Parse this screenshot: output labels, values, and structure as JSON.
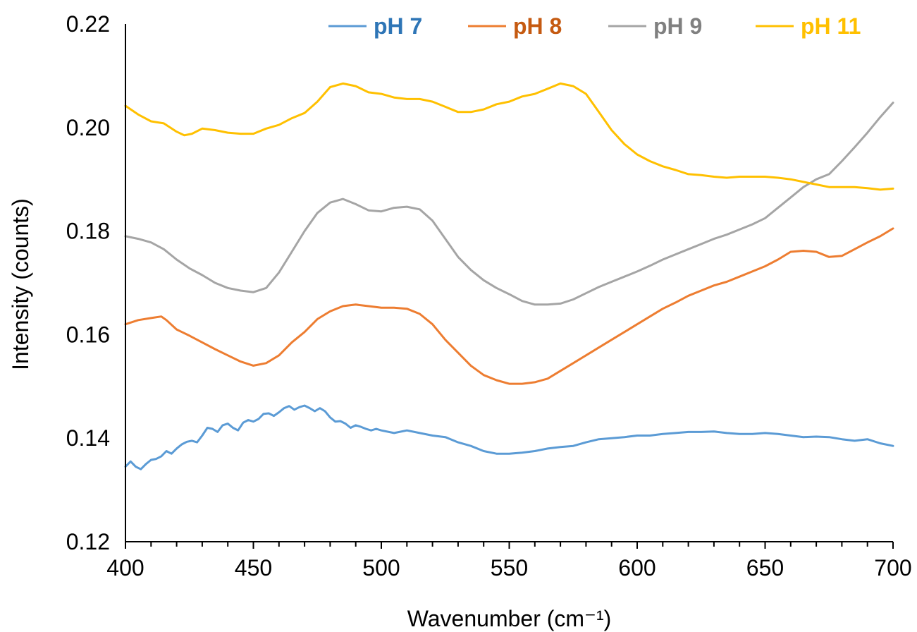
{
  "chart_data": {
    "type": "line",
    "title": "",
    "xlabel": "Wavenumber (cm⁻¹)",
    "ylabel": "Intensity (counts)",
    "xlim": [
      400,
      700
    ],
    "ylim": [
      0.12,
      0.22
    ],
    "x_ticks": [
      400,
      450,
      500,
      550,
      600,
      650,
      700
    ],
    "x_tick_labels": [
      "400",
      "450",
      "500",
      "550",
      "600",
      "650",
      "700"
    ],
    "y_ticks": [
      0.12,
      0.14,
      0.16,
      0.18,
      0.2,
      0.22
    ],
    "y_tick_labels": [
      "0.12",
      "0.14",
      "0.16",
      "0.18",
      "0.20",
      "0.22"
    ],
    "x_minor_tick_step": 10,
    "grid": false,
    "legend_position": "top",
    "series": [
      {
        "name": "pH 7",
        "color": "#5B9BD5",
        "label_color": "#2E75B6",
        "points": [
          [
            400,
            0.1345
          ],
          [
            402,
            0.1355
          ],
          [
            404,
            0.1345
          ],
          [
            406,
            0.134
          ],
          [
            408,
            0.135
          ],
          [
            410,
            0.1358
          ],
          [
            412,
            0.136
          ],
          [
            414,
            0.1365
          ],
          [
            416,
            0.1375
          ],
          [
            418,
            0.137
          ],
          [
            420,
            0.138
          ],
          [
            422,
            0.1388
          ],
          [
            424,
            0.1393
          ],
          [
            426,
            0.1395
          ],
          [
            428,
            0.1392
          ],
          [
            430,
            0.1405
          ],
          [
            432,
            0.142
          ],
          [
            434,
            0.1418
          ],
          [
            436,
            0.1412
          ],
          [
            438,
            0.1425
          ],
          [
            440,
            0.1428
          ],
          [
            442,
            0.142
          ],
          [
            444,
            0.1415
          ],
          [
            446,
            0.143
          ],
          [
            448,
            0.1435
          ],
          [
            450,
            0.1432
          ],
          [
            452,
            0.1437
          ],
          [
            454,
            0.1447
          ],
          [
            456,
            0.1448
          ],
          [
            458,
            0.1443
          ],
          [
            460,
            0.145
          ],
          [
            462,
            0.1458
          ],
          [
            464,
            0.1462
          ],
          [
            466,
            0.1455
          ],
          [
            468,
            0.146
          ],
          [
            470,
            0.1463
          ],
          [
            472,
            0.1458
          ],
          [
            474,
            0.1452
          ],
          [
            476,
            0.1458
          ],
          [
            478,
            0.1452
          ],
          [
            480,
            0.144
          ],
          [
            482,
            0.1432
          ],
          [
            484,
            0.1433
          ],
          [
            486,
            0.1428
          ],
          [
            488,
            0.142
          ],
          [
            490,
            0.1425
          ],
          [
            492,
            0.1422
          ],
          [
            494,
            0.1418
          ],
          [
            496,
            0.1415
          ],
          [
            498,
            0.1418
          ],
          [
            500,
            0.1415
          ],
          [
            505,
            0.141
          ],
          [
            510,
            0.1415
          ],
          [
            515,
            0.141
          ],
          [
            520,
            0.1405
          ],
          [
            525,
            0.1402
          ],
          [
            530,
            0.1392
          ],
          [
            535,
            0.1385
          ],
          [
            540,
            0.1375
          ],
          [
            545,
            0.137
          ],
          [
            550,
            0.137
          ],
          [
            555,
            0.1372
          ],
          [
            560,
            0.1375
          ],
          [
            565,
            0.138
          ],
          [
            570,
            0.1383
          ],
          [
            575,
            0.1385
          ],
          [
            580,
            0.1392
          ],
          [
            585,
            0.1398
          ],
          [
            590,
            0.14
          ],
          [
            595,
            0.1402
          ],
          [
            600,
            0.1405
          ],
          [
            605,
            0.1405
          ],
          [
            610,
            0.1408
          ],
          [
            615,
            0.141
          ],
          [
            620,
            0.1412
          ],
          [
            625,
            0.1412
          ],
          [
            630,
            0.1413
          ],
          [
            635,
            0.141
          ],
          [
            640,
            0.1408
          ],
          [
            645,
            0.1408
          ],
          [
            650,
            0.141
          ],
          [
            655,
            0.1408
          ],
          [
            660,
            0.1405
          ],
          [
            665,
            0.1402
          ],
          [
            670,
            0.1403
          ],
          [
            675,
            0.1402
          ],
          [
            680,
            0.1398
          ],
          [
            685,
            0.1395
          ],
          [
            690,
            0.1398
          ],
          [
            695,
            0.139
          ],
          [
            700,
            0.1385
          ]
        ]
      },
      {
        "name": "pH 8",
        "color": "#ED7D31",
        "label_color": "#C55A11",
        "points": [
          [
            400,
            0.162
          ],
          [
            405,
            0.1628
          ],
          [
            410,
            0.1632
          ],
          [
            414,
            0.1635
          ],
          [
            416,
            0.1628
          ],
          [
            420,
            0.161
          ],
          [
            425,
            0.1598
          ],
          [
            430,
            0.1585
          ],
          [
            435,
            0.1572
          ],
          [
            440,
            0.156
          ],
          [
            445,
            0.1548
          ],
          [
            450,
            0.154
          ],
          [
            455,
            0.1545
          ],
          [
            460,
            0.156
          ],
          [
            465,
            0.1585
          ],
          [
            470,
            0.1605
          ],
          [
            475,
            0.163
          ],
          [
            480,
            0.1645
          ],
          [
            485,
            0.1655
          ],
          [
            490,
            0.1658
          ],
          [
            495,
            0.1655
          ],
          [
            500,
            0.1652
          ],
          [
            505,
            0.1652
          ],
          [
            510,
            0.165
          ],
          [
            515,
            0.164
          ],
          [
            520,
            0.162
          ],
          [
            525,
            0.159
          ],
          [
            530,
            0.1565
          ],
          [
            535,
            0.154
          ],
          [
            540,
            0.1522
          ],
          [
            545,
            0.1512
          ],
          [
            550,
            0.1505
          ],
          [
            555,
            0.1505
          ],
          [
            560,
            0.1508
          ],
          [
            565,
            0.1515
          ],
          [
            570,
            0.153
          ],
          [
            575,
            0.1545
          ],
          [
            580,
            0.156
          ],
          [
            585,
            0.1575
          ],
          [
            590,
            0.159
          ],
          [
            595,
            0.1605
          ],
          [
            600,
            0.162
          ],
          [
            605,
            0.1635
          ],
          [
            610,
            0.165
          ],
          [
            615,
            0.1662
          ],
          [
            620,
            0.1675
          ],
          [
            625,
            0.1685
          ],
          [
            630,
            0.1695
          ],
          [
            635,
            0.1702
          ],
          [
            640,
            0.1712
          ],
          [
            645,
            0.1722
          ],
          [
            650,
            0.1732
          ],
          [
            655,
            0.1745
          ],
          [
            660,
            0.176
          ],
          [
            665,
            0.1762
          ],
          [
            670,
            0.176
          ],
          [
            675,
            0.175
          ],
          [
            680,
            0.1752
          ],
          [
            685,
            0.1765
          ],
          [
            690,
            0.1778
          ],
          [
            695,
            0.179
          ],
          [
            700,
            0.1805
          ]
        ]
      },
      {
        "name": "pH 9",
        "color": "#A5A5A5",
        "label_color": "#808080",
        "points": [
          [
            400,
            0.179
          ],
          [
            405,
            0.1785
          ],
          [
            410,
            0.1778
          ],
          [
            415,
            0.1765
          ],
          [
            420,
            0.1745
          ],
          [
            425,
            0.1728
          ],
          [
            430,
            0.1715
          ],
          [
            435,
            0.17
          ],
          [
            440,
            0.169
          ],
          [
            445,
            0.1685
          ],
          [
            450,
            0.1682
          ],
          [
            455,
            0.169
          ],
          [
            460,
            0.172
          ],
          [
            465,
            0.176
          ],
          [
            470,
            0.18
          ],
          [
            475,
            0.1835
          ],
          [
            480,
            0.1855
          ],
          [
            485,
            0.1862
          ],
          [
            490,
            0.1852
          ],
          [
            495,
            0.184
          ],
          [
            500,
            0.1838
          ],
          [
            505,
            0.1845
          ],
          [
            510,
            0.1847
          ],
          [
            515,
            0.1842
          ],
          [
            520,
            0.182
          ],
          [
            525,
            0.1785
          ],
          [
            530,
            0.175
          ],
          [
            535,
            0.1725
          ],
          [
            540,
            0.1705
          ],
          [
            545,
            0.169
          ],
          [
            550,
            0.1678
          ],
          [
            555,
            0.1665
          ],
          [
            560,
            0.1658
          ],
          [
            565,
            0.1658
          ],
          [
            570,
            0.166
          ],
          [
            575,
            0.1668
          ],
          [
            580,
            0.168
          ],
          [
            585,
            0.1692
          ],
          [
            590,
            0.1702
          ],
          [
            595,
            0.1712
          ],
          [
            600,
            0.1722
          ],
          [
            605,
            0.1733
          ],
          [
            610,
            0.1745
          ],
          [
            615,
            0.1755
          ],
          [
            620,
            0.1765
          ],
          [
            625,
            0.1775
          ],
          [
            630,
            0.1785
          ],
          [
            635,
            0.1793
          ],
          [
            640,
            0.1803
          ],
          [
            645,
            0.1813
          ],
          [
            650,
            0.1825
          ],
          [
            655,
            0.1845
          ],
          [
            660,
            0.1865
          ],
          [
            665,
            0.1885
          ],
          [
            670,
            0.19
          ],
          [
            675,
            0.191
          ],
          [
            680,
            0.1935
          ],
          [
            685,
            0.1962
          ],
          [
            690,
            0.199
          ],
          [
            695,
            0.202
          ],
          [
            700,
            0.2048
          ]
        ]
      },
      {
        "name": "pH 11",
        "color": "#FFC000",
        "label_color": "#FFC000",
        "points": [
          [
            400,
            0.2042
          ],
          [
            405,
            0.2025
          ],
          [
            410,
            0.2012
          ],
          [
            415,
            0.2008
          ],
          [
            420,
            0.1992
          ],
          [
            423,
            0.1985
          ],
          [
            426,
            0.1988
          ],
          [
            430,
            0.1998
          ],
          [
            435,
            0.1995
          ],
          [
            440,
            0.199
          ],
          [
            445,
            0.1988
          ],
          [
            450,
            0.1988
          ],
          [
            455,
            0.1998
          ],
          [
            460,
            0.2005
          ],
          [
            465,
            0.2018
          ],
          [
            470,
            0.2028
          ],
          [
            475,
            0.205
          ],
          [
            480,
            0.2078
          ],
          [
            485,
            0.2085
          ],
          [
            490,
            0.208
          ],
          [
            495,
            0.2068
          ],
          [
            500,
            0.2065
          ],
          [
            505,
            0.2058
          ],
          [
            510,
            0.2055
          ],
          [
            515,
            0.2055
          ],
          [
            520,
            0.205
          ],
          [
            525,
            0.204
          ],
          [
            530,
            0.203
          ],
          [
            535,
            0.203
          ],
          [
            540,
            0.2035
          ],
          [
            545,
            0.2045
          ],
          [
            550,
            0.205
          ],
          [
            555,
            0.206
          ],
          [
            560,
            0.2065
          ],
          [
            565,
            0.2075
          ],
          [
            570,
            0.2085
          ],
          [
            575,
            0.208
          ],
          [
            580,
            0.2065
          ],
          [
            585,
            0.203
          ],
          [
            590,
            0.1995
          ],
          [
            595,
            0.1968
          ],
          [
            600,
            0.1948
          ],
          [
            605,
            0.1935
          ],
          [
            610,
            0.1925
          ],
          [
            615,
            0.1918
          ],
          [
            620,
            0.191
          ],
          [
            625,
            0.1908
          ],
          [
            630,
            0.1905
          ],
          [
            635,
            0.1903
          ],
          [
            640,
            0.1905
          ],
          [
            645,
            0.1905
          ],
          [
            650,
            0.1905
          ],
          [
            655,
            0.1903
          ],
          [
            660,
            0.19
          ],
          [
            665,
            0.1895
          ],
          [
            670,
            0.189
          ],
          [
            675,
            0.1885
          ],
          [
            680,
            0.1885
          ],
          [
            685,
            0.1885
          ],
          [
            690,
            0.1883
          ],
          [
            695,
            0.188
          ],
          [
            700,
            0.1882
          ]
        ]
      }
    ]
  }
}
